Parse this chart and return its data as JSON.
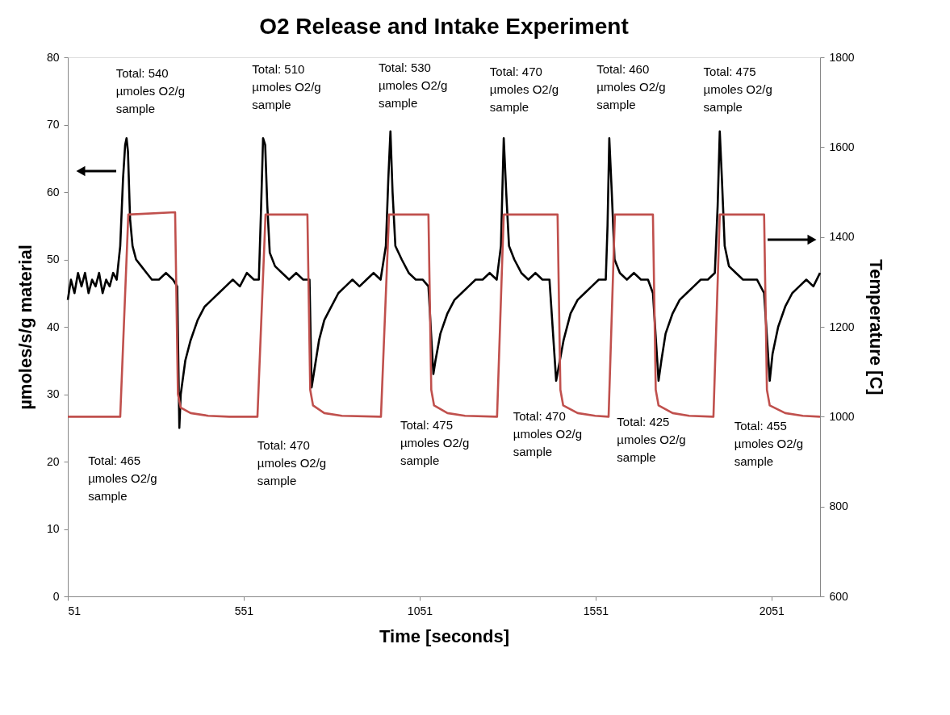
{
  "chart_data": {
    "type": "line",
    "title": "O2 Release and Intake Experiment",
    "xlabel": "Time [seconds]",
    "ylabel": "µmoles/s/g material",
    "y2label": "Temperature [C]",
    "xlim": [
      51,
      2189
    ],
    "xticks": [
      51,
      551,
      1051,
      1551,
      2051
    ],
    "ylim": [
      0,
      80
    ],
    "yticks": [
      0,
      10,
      20,
      30,
      40,
      50,
      60,
      70,
      80
    ],
    "y2lim": [
      600,
      1800
    ],
    "y2ticks": [
      600,
      800,
      1000,
      1200,
      1400,
      1600,
      1800
    ],
    "grid": false,
    "marker": "none",
    "line_style": "solid",
    "series": [
      {
        "color": "#000000",
        "x": [
          51,
          60,
          70,
          80,
          90,
          100,
          110,
          120,
          130,
          140,
          150,
          160,
          170,
          180,
          190,
          200,
          208,
          214,
          218,
          222,
          228,
          235,
          245,
          260,
          275,
          290,
          310,
          330,
          350,
          362,
          368,
          372,
          385,
          400,
          420,
          440,
          460,
          480,
          500,
          520,
          540,
          560,
          580,
          594,
          600,
          606,
          612,
          618,
          625,
          640,
          660,
          680,
          700,
          720,
          738,
          744,
          750,
          765,
          780,
          800,
          820,
          840,
          860,
          880,
          900,
          920,
          940,
          955,
          962,
          968,
          974,
          982,
          1000,
          1020,
          1040,
          1060,
          1076,
          1090,
          1096,
          1110,
          1130,
          1150,
          1170,
          1190,
          1210,
          1230,
          1250,
          1270,
          1282,
          1290,
          1297,
          1305,
          1320,
          1340,
          1360,
          1380,
          1400,
          1420,
          1439,
          1446,
          1460,
          1480,
          1500,
          1520,
          1540,
          1560,
          1580,
          1585,
          1590,
          1597,
          1605,
          1620,
          1640,
          1660,
          1680,
          1700,
          1714,
          1730,
          1738,
          1750,
          1770,
          1790,
          1810,
          1830,
          1850,
          1870,
          1890,
          1898,
          1904,
          1910,
          1918,
          1930,
          1950,
          1970,
          1990,
          2010,
          2030,
          2046,
          2054,
          2070,
          2090,
          2110,
          2130,
          2150,
          2170,
          2189
        ],
        "values": [
          44,
          47,
          45,
          48,
          46,
          48,
          45,
          47,
          46,
          48,
          45,
          47,
          46,
          48,
          47,
          52,
          62,
          67,
          68,
          66,
          56,
          52,
          50,
          49,
          48,
          47,
          47,
          48,
          47,
          46,
          25,
          30,
          35,
          38,
          41,
          43,
          44,
          45,
          46,
          47,
          46,
          48,
          47,
          47,
          57,
          68,
          67,
          58,
          51,
          49,
          48,
          47,
          48,
          47,
          47,
          31,
          33,
          38,
          41,
          43,
          45,
          46,
          47,
          46,
          47,
          48,
          47,
          52,
          62,
          69,
          60,
          52,
          50,
          48,
          47,
          47,
          46,
          33,
          35,
          39,
          42,
          44,
          45,
          46,
          47,
          47,
          48,
          47,
          52,
          68,
          60,
          52,
          50,
          48,
          47,
          48,
          47,
          47,
          32,
          34,
          38,
          42,
          44,
          45,
          46,
          47,
          47,
          55,
          68,
          60,
          50,
          48,
          47,
          48,
          47,
          47,
          45,
          32,
          35,
          39,
          42,
          44,
          45,
          46,
          47,
          47,
          48,
          58,
          69,
          62,
          52,
          49,
          48,
          47,
          47,
          47,
          45,
          32,
          36,
          40,
          43,
          45,
          46,
          47,
          46,
          48
        ]
      },
      {
        "color": "#c0504d",
        "axis": "y2",
        "x": [
          51,
          200,
          223,
          356,
          364,
          372,
          400,
          450,
          510,
          590,
          613,
          732,
          740,
          748,
          780,
          830,
          941,
          964,
          1076,
          1084,
          1092,
          1130,
          1180,
          1271,
          1290,
          1443,
          1451,
          1459,
          1500,
          1550,
          1588,
          1606,
          1714,
          1722,
          1730,
          1770,
          1817,
          1886,
          1904,
          2030,
          2038,
          2046,
          2090,
          2140,
          2189
        ],
        "values": [
          1000,
          1000,
          1450,
          1455,
          1050,
          1020,
          1008,
          1002,
          1000,
          1000,
          1450,
          1450,
          1060,
          1025,
          1008,
          1002,
          1000,
          1450,
          1450,
          1060,
          1025,
          1008,
          1002,
          1000,
          1450,
          1450,
          1060,
          1025,
          1008,
          1002,
          1000,
          1450,
          1450,
          1060,
          1025,
          1008,
          1002,
          1000,
          1450,
          1450,
          1060,
          1025,
          1008,
          1002,
          1000
        ]
      }
    ],
    "annotations": [
      "Total: 540\nµmoles O2/g\nsample",
      "Total: 510\nµmoles O2/g\nsample",
      "Total: 530\nµmoles O2/g\nsample",
      "Total: 470\nµmoles O2/g\nsample",
      "Total: 460\nµmoles O2/g\nsample",
      "Total: 475\nµmoles O2/g\nsample",
      "Total: 465\nµmoles O2/g\nsample",
      "Total: 470\nµmoles O2/g\nsample",
      "Total: 475\nµmoles O2/g\nsample",
      "Total: 470\nµmoles O2/g\nsample",
      "Total: 425\nµmoles O2/g\nsample",
      "Total: 455\nµmoles O2/g\nsample"
    ]
  }
}
